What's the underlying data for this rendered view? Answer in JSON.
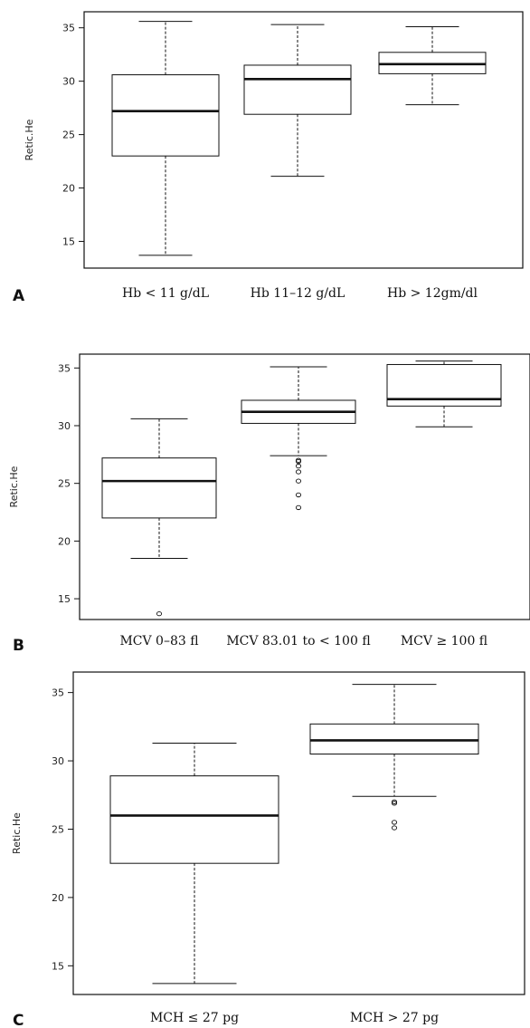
{
  "chart_data": [
    {
      "panel": "A",
      "type": "boxplot",
      "ylabel": "Retic.He",
      "ylim": [
        12.5,
        36.5
      ],
      "yticks": [
        15,
        20,
        25,
        30,
        35
      ],
      "categories": [
        "Hb < 11 g/dL",
        "Hb 11–12 g/dL",
        "Hb > 12gm/dl"
      ],
      "boxes": [
        {
          "min": 13.7,
          "q1": 23.0,
          "median": 27.2,
          "q3": 30.6,
          "max": 35.6,
          "outliers": []
        },
        {
          "min": 21.1,
          "q1": 26.9,
          "median": 30.2,
          "q3": 31.5,
          "max": 35.3,
          "outliers": []
        },
        {
          "min": 27.8,
          "q1": 30.7,
          "median": 31.6,
          "q3": 32.7,
          "max": 35.1,
          "outliers": []
        }
      ]
    },
    {
      "panel": "B",
      "type": "boxplot",
      "ylabel": "Retic.He",
      "ylim": [
        13.2,
        36.2
      ],
      "yticks": [
        15,
        20,
        25,
        30,
        35
      ],
      "categories": [
        "MCV 0–83 fl",
        "MCV 83.01 to < 100 fl",
        "MCV ≥ 100 fl"
      ],
      "boxes": [
        {
          "min": 18.5,
          "q1": 22.0,
          "median": 25.2,
          "q3": 27.2,
          "max": 30.6,
          "outliers": [
            13.7
          ]
        },
        {
          "min": 27.4,
          "q1": 30.2,
          "median": 31.2,
          "q3": 32.2,
          "max": 35.1,
          "outliers": [
            27.0,
            26.9,
            26.5,
            26.0,
            25.2,
            24.0,
            22.9
          ]
        },
        {
          "min": 29.9,
          "q1": 31.7,
          "median": 32.3,
          "q3": 35.3,
          "max": 35.6,
          "outliers": []
        }
      ]
    },
    {
      "panel": "C",
      "type": "boxplot",
      "ylabel": "Retic.He",
      "ylim": [
        12.9,
        36.5
      ],
      "yticks": [
        15,
        20,
        25,
        30,
        35
      ],
      "categories": [
        "MCH ≤ 27 pg",
        "MCH > 27 pg"
      ],
      "boxes": [
        {
          "min": 13.7,
          "q1": 22.5,
          "median": 26.0,
          "q3": 28.9,
          "max": 31.3,
          "outliers": []
        },
        {
          "min": 27.4,
          "q1": 30.5,
          "median": 31.5,
          "q3": 32.7,
          "max": 35.6,
          "outliers": [
            27.0,
            26.9,
            25.5,
            25.1
          ]
        }
      ]
    }
  ]
}
